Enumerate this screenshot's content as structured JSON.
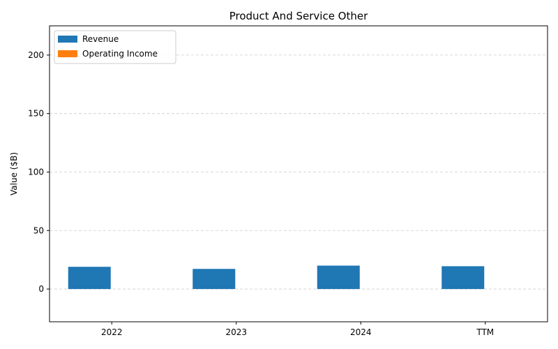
{
  "chart_data": {
    "type": "bar",
    "title": "Product And Service Other",
    "xlabel": "",
    "ylabel": "Value ($B)",
    "categories": [
      "2022",
      "2023",
      "2024",
      "TTM"
    ],
    "series": [
      {
        "name": "Revenue",
        "color": "#1f77b4",
        "values": [
          19.0,
          17.2,
          20.0,
          19.5
        ]
      },
      {
        "name": "Operating Income",
        "color": "#ff7f0e",
        "values": [
          0,
          0,
          0,
          0
        ]
      }
    ],
    "ylim": [
      -28,
      225
    ],
    "yticks": [
      0,
      50,
      100,
      150,
      200
    ],
    "grid": true,
    "legend_position": "top-left"
  }
}
